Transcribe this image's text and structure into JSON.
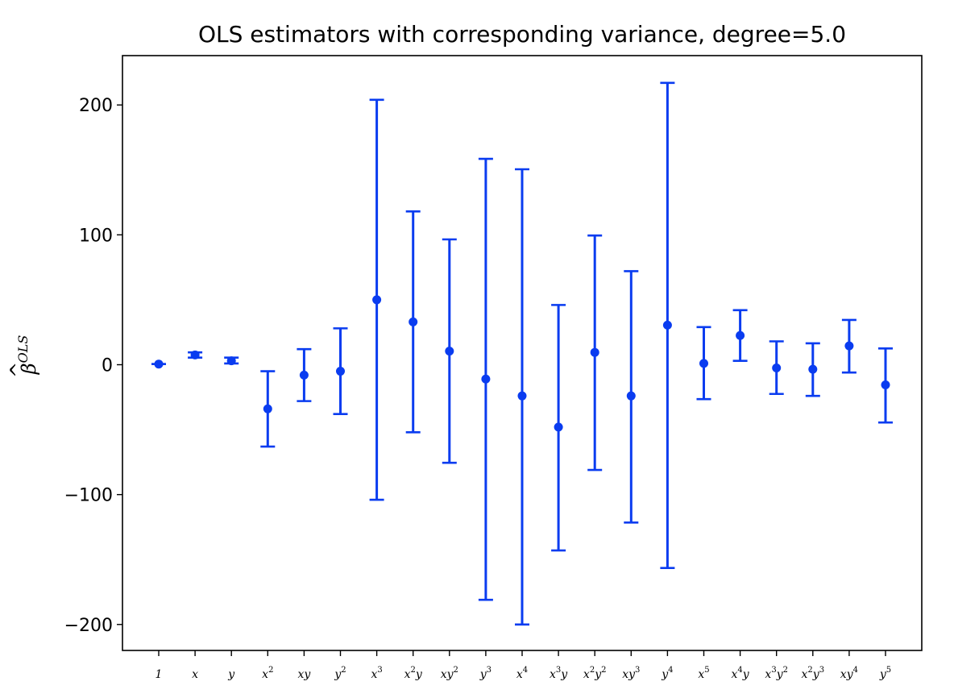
{
  "chart_data": {
    "type": "errorbar",
    "title": "OLS estimators with corresponding variance, degree=5.0",
    "ylabel": {
      "base": "β",
      "hat": "^",
      "superscript": "OLS"
    },
    "xlabel": "",
    "ylim": [
      -220,
      238
    ],
    "yticks": [
      -200,
      -100,
      0,
      100,
      200
    ],
    "ytick_labels": [
      "−200",
      "−100",
      "0",
      "100",
      "200"
    ],
    "grid": false,
    "color": "#0a3cf0",
    "categories": [
      {
        "base": "1",
        "sup": ""
      },
      {
        "base": "x",
        "sup": ""
      },
      {
        "base": "y",
        "sup": ""
      },
      {
        "base": "x",
        "sup": "2"
      },
      {
        "base": "xy",
        "sup": ""
      },
      {
        "base": "y",
        "sup": "2"
      },
      {
        "base": "x",
        "sup": "3"
      },
      {
        "base": "x",
        "sup": "2",
        "tail": "y"
      },
      {
        "base": "xy",
        "sup": "2"
      },
      {
        "base": "y",
        "sup": "3"
      },
      {
        "base": "x",
        "sup": "4"
      },
      {
        "base": "x",
        "sup": "3",
        "tail": "y"
      },
      {
        "base": "x",
        "sup": "2",
        "tail": "y",
        "tail_sup": "2"
      },
      {
        "base": "xy",
        "sup": "3"
      },
      {
        "base": "y",
        "sup": "4"
      },
      {
        "base": "x",
        "sup": "5"
      },
      {
        "base": "x",
        "sup": "4",
        "tail": "y"
      },
      {
        "base": "x",
        "sup": "3",
        "tail": "y",
        "tail_sup": "2"
      },
      {
        "base": "x",
        "sup": "2",
        "tail": "y",
        "tail_sup": "3"
      },
      {
        "base": "xy",
        "sup": "4"
      },
      {
        "base": "y",
        "sup": "5"
      }
    ],
    "values": [
      0.5,
      7.5,
      3.0,
      -34.0,
      -8.0,
      -5.0,
      50.0,
      33.0,
      10.5,
      -11.0,
      -24.0,
      -48.0,
      9.5,
      -24.0,
      30.5,
      1.0,
      22.5,
      -2.5,
      -3.5,
      14.5,
      -15.5
    ],
    "errors": [
      [
        0.5,
        0.5
      ],
      [
        9.5,
        5.5
      ],
      [
        5.5,
        1.0
      ],
      [
        -5.0,
        -63.0
      ],
      [
        12.0,
        -28.0
      ],
      [
        28.0,
        -38.0
      ],
      [
        204.0,
        -104.0
      ],
      [
        118.0,
        -52.0
      ],
      [
        96.5,
        -75.5
      ],
      [
        158.5,
        -181.0
      ],
      [
        150.5,
        -200.0
      ],
      [
        46.0,
        -143.0
      ],
      [
        99.5,
        -81.0
      ],
      [
        72.0,
        -121.5
      ],
      [
        217.0,
        -156.5
      ],
      [
        29.0,
        -26.5
      ],
      [
        42.0,
        3.0
      ],
      [
        18.0,
        -22.5
      ],
      [
        16.5,
        -24.0
      ],
      [
        34.5,
        -6.0
      ],
      [
        12.5,
        -44.5
      ]
    ]
  }
}
